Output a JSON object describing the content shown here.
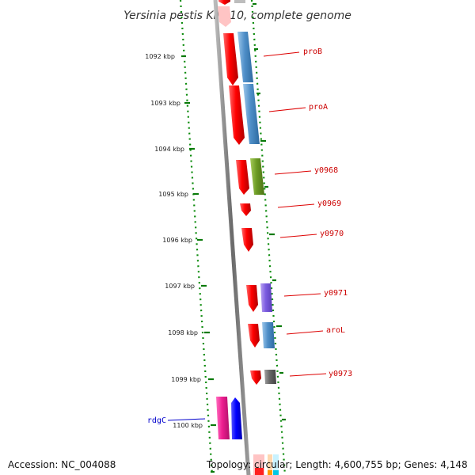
{
  "title": "Yersinia pestis KIM 10, complete genome",
  "ticks": [
    {
      "label": "1092 kbp"
    },
    {
      "label": "1093 kbp"
    },
    {
      "label": "1094 kbp"
    },
    {
      "label": "1095 kbp"
    },
    {
      "label": "1096 kbp"
    },
    {
      "label": "1097 kbp"
    },
    {
      "label": "1098 kbp"
    },
    {
      "label": "1099 kbp"
    },
    {
      "label": "1100 kbp"
    }
  ],
  "genes": [
    {
      "name": "proB",
      "color": "#cc0000"
    },
    {
      "name": "proA",
      "color": "#cc0000"
    },
    {
      "name": "y0968",
      "color": "#cc0000"
    },
    {
      "name": "y0969",
      "color": "#cc0000"
    },
    {
      "name": "y0970",
      "color": "#cc0000"
    },
    {
      "name": "y0971",
      "color": "#cc0000"
    },
    {
      "name": "aroL",
      "color": "#cc0000"
    },
    {
      "name": "y0973",
      "color": "#cc0000"
    },
    {
      "name": "rdgC",
      "color": "#0000cc"
    }
  ],
  "footer": {
    "accession": "Accession: NC_004088",
    "summary": "Topology: circular; Length: 4,600,755 bp; Genes: 4,148"
  }
}
